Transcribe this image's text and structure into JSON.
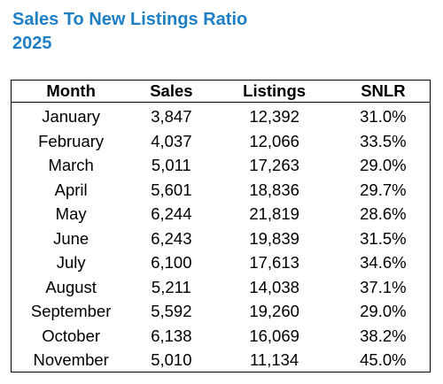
{
  "title": {
    "line1": "Sales To New Listings Ratio",
    "line2": "2025"
  },
  "chart_data": {
    "type": "table",
    "title": "Sales To New Listings Ratio 2025",
    "columns": [
      "Month",
      "Sales",
      "Listings",
      "SNLR"
    ],
    "rows": [
      {
        "month": "January",
        "sales": "3,847",
        "listings": "12,392",
        "snlr": "31.0%"
      },
      {
        "month": "February",
        "sales": "4,037",
        "listings": "12,066",
        "snlr": "33.5%"
      },
      {
        "month": "March",
        "sales": "5,011",
        "listings": "17,263",
        "snlr": "29.0%"
      },
      {
        "month": "April",
        "sales": "5,601",
        "listings": "18,836",
        "snlr": "29.7%"
      },
      {
        "month": "May",
        "sales": "6,244",
        "listings": "21,819",
        "snlr": "28.6%"
      },
      {
        "month": "June",
        "sales": "6,243",
        "listings": "19,839",
        "snlr": "31.5%"
      },
      {
        "month": "July",
        "sales": "6,100",
        "listings": "17,613",
        "snlr": "34.6%"
      },
      {
        "month": "August",
        "sales": "5,211",
        "listings": "14,038",
        "snlr": "37.1%"
      },
      {
        "month": "September",
        "sales": "5,592",
        "listings": "19,260",
        "snlr": "29.0%"
      },
      {
        "month": "October",
        "sales": "6,138",
        "listings": "16,069",
        "snlr": "38.2%"
      },
      {
        "month": "November",
        "sales": "5,010",
        "listings": "11,134",
        "snlr": "45.0%"
      }
    ]
  }
}
